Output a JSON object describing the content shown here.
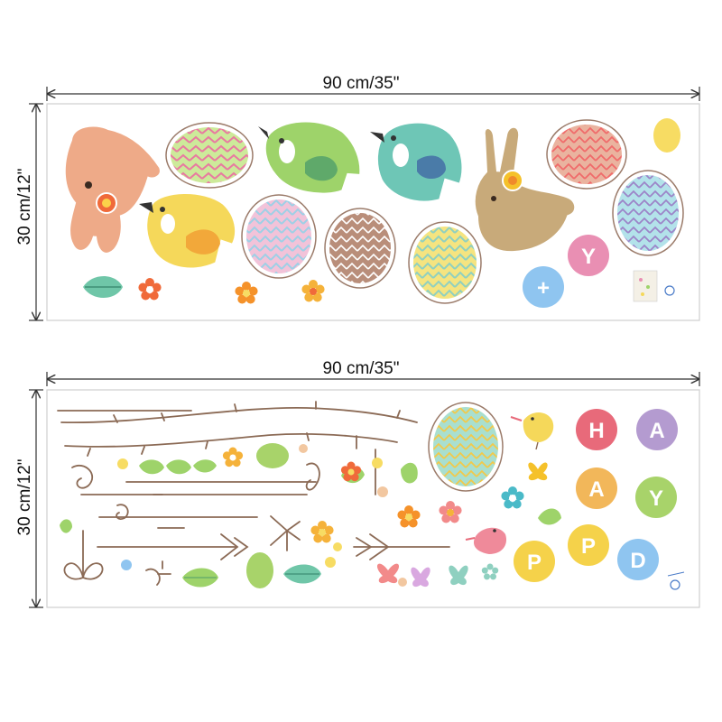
{
  "sheets": [
    {
      "width_label": "90 cm/35\"",
      "height_label": "30 cm/12\""
    },
    {
      "width_label": "90 cm/35\"",
      "height_label": "30 cm/12\""
    }
  ],
  "letters_sheet1": [
    {
      "char": "Y",
      "color": "#e98fb3"
    },
    {
      "char": "+",
      "color": "#8fc5f0"
    }
  ],
  "letters_sheet2": [
    {
      "char": "H",
      "color": "#e86a7a"
    },
    {
      "char": "A",
      "color": "#b49bd0"
    },
    {
      "char": "A",
      "color": "#f2b75a"
    },
    {
      "char": "Y",
      "color": "#a8d36a"
    },
    {
      "char": "P",
      "color": "#f5d24a"
    },
    {
      "char": "P",
      "color": "#f5d24a"
    },
    {
      "char": "D",
      "color": "#8fc5f0"
    }
  ],
  "icons": [
    "bunny-icon",
    "chick-icon",
    "bird-icon",
    "easter-egg-icon",
    "flower-icon",
    "leaf-icon",
    "butterfly-icon",
    "vine-icon",
    "logo-icon"
  ],
  "colors": {
    "border": "#d8d8d8",
    "outline": "#9b7b6a",
    "branch": "#8b6a55"
  }
}
